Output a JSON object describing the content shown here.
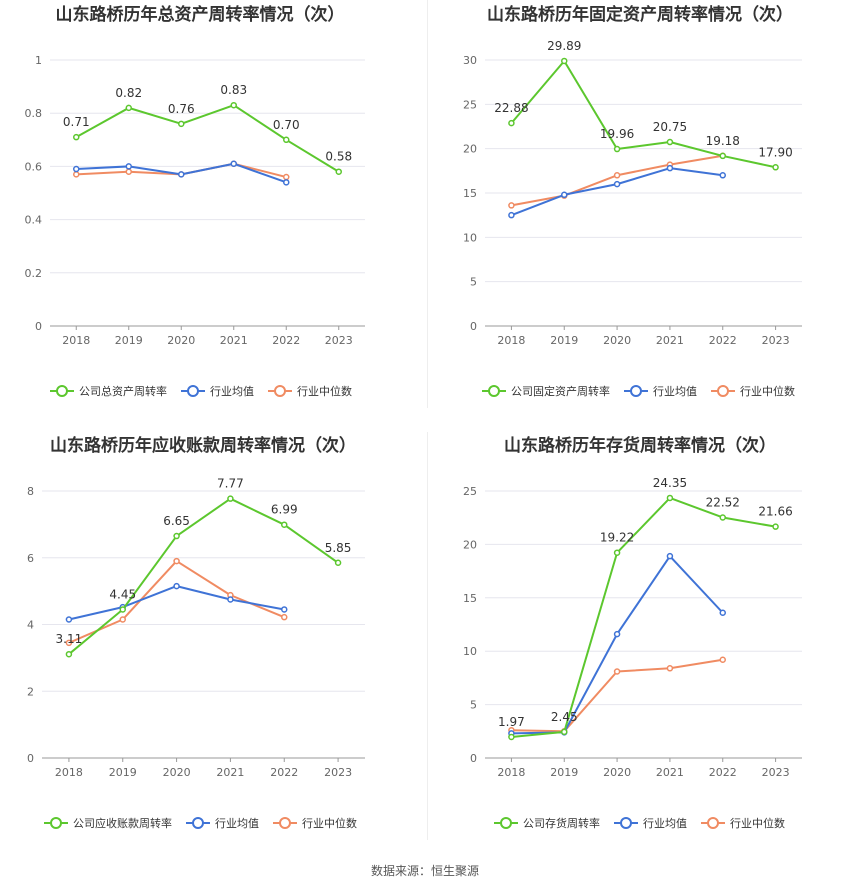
{
  "source_note": "数据来源：恒生聚源",
  "colors": {
    "company": "#5cc72e",
    "avg": "#3f73d6",
    "median": "#f08b62",
    "grid": "#e6e6ee",
    "axis": "#999999",
    "text": "#333333",
    "tick": "#666666"
  },
  "chart_data": [
    {
      "type": "line",
      "title": "山东路桥历年总资产周转率情况（次）",
      "categories": [
        "2018",
        "2019",
        "2020",
        "2021",
        "2022",
        "2023"
      ],
      "ylim": [
        0,
        1
      ],
      "yticks": [
        "0",
        "0.2",
        "0.4",
        "0.6",
        "0.8",
        "1"
      ],
      "ytick_values": [
        0,
        0.2,
        0.4,
        0.6,
        0.8,
        1
      ],
      "legend_position": "bottom",
      "series": [
        {
          "name": "公司总资产周转率",
          "color_key": "company",
          "values": [
            0.71,
            0.82,
            0.76,
            0.83,
            0.7,
            0.58
          ],
          "labels": [
            "0.71",
            "0.82",
            "0.76",
            "0.83",
            "0.70",
            "0.58"
          ]
        },
        {
          "name": "行业均值",
          "color_key": "avg",
          "values": [
            0.59,
            0.6,
            0.57,
            0.61,
            0.54,
            null
          ]
        },
        {
          "name": "行业中位数",
          "color_key": "median",
          "values": [
            0.57,
            0.58,
            0.57,
            0.61,
            0.56,
            null
          ]
        }
      ]
    },
    {
      "type": "line",
      "title": "山东路桥历年固定资产周转率情况（次）",
      "categories": [
        "2018",
        "2019",
        "2020",
        "2021",
        "2022",
        "2023"
      ],
      "ylim": [
        0,
        30
      ],
      "yticks": [
        "0",
        "5",
        "10",
        "15",
        "20",
        "25",
        "30"
      ],
      "ytick_values": [
        0,
        5,
        10,
        15,
        20,
        25,
        30
      ],
      "legend_position": "bottom",
      "series": [
        {
          "name": "公司固定资产周转率",
          "color_key": "company",
          "values": [
            22.88,
            29.89,
            19.96,
            20.75,
            19.18,
            17.9
          ],
          "labels": [
            "22.88",
            "29.89",
            "19.96",
            "20.75",
            "19.18",
            "17.90"
          ]
        },
        {
          "name": "行业均值",
          "color_key": "avg",
          "values": [
            12.5,
            14.8,
            16.0,
            17.8,
            17.0,
            null
          ]
        },
        {
          "name": "行业中位数",
          "color_key": "median",
          "values": [
            13.6,
            14.7,
            17.0,
            18.2,
            19.2,
            null
          ]
        }
      ]
    },
    {
      "type": "line",
      "title": "山东路桥历年应收账款周转率情况（次）",
      "categories": [
        "2018",
        "2019",
        "2020",
        "2021",
        "2022",
        "2023"
      ],
      "ylim": [
        0,
        8
      ],
      "yticks": [
        "0",
        "2",
        "4",
        "6",
        "8"
      ],
      "ytick_values": [
        0,
        2,
        4,
        6,
        8
      ],
      "legend_position": "bottom",
      "series": [
        {
          "name": "公司应收账款周转率",
          "color_key": "company",
          "values": [
            3.11,
            4.45,
            6.65,
            7.77,
            6.99,
            5.85
          ],
          "labels": [
            "3.11",
            "4.45",
            "6.65",
            "7.77",
            "6.99",
            "5.85"
          ]
        },
        {
          "name": "行业均值",
          "color_key": "avg",
          "values": [
            4.15,
            4.52,
            5.15,
            4.75,
            4.45,
            null
          ]
        },
        {
          "name": "行业中位数",
          "color_key": "median",
          "values": [
            3.45,
            4.15,
            5.9,
            4.88,
            4.22,
            null
          ]
        }
      ]
    },
    {
      "type": "line",
      "title": "山东路桥历年存货周转率情况（次）",
      "categories": [
        "2018",
        "2019",
        "2020",
        "2021",
        "2022",
        "2023"
      ],
      "ylim": [
        0,
        25
      ],
      "yticks": [
        "0",
        "5",
        "10",
        "15",
        "20",
        "25"
      ],
      "ytick_values": [
        0,
        5,
        10,
        15,
        20,
        25
      ],
      "legend_position": "bottom",
      "series": [
        {
          "name": "公司存货周转率",
          "color_key": "company",
          "values": [
            1.97,
            2.45,
            19.22,
            24.35,
            22.52,
            21.66
          ],
          "labels": [
            "1.97",
            "2.45",
            "19.22",
            "24.35",
            "22.52",
            "21.66"
          ]
        },
        {
          "name": "行业均值",
          "color_key": "avg",
          "values": [
            2.3,
            2.4,
            11.6,
            18.9,
            13.6,
            null
          ]
        },
        {
          "name": "行业中位数",
          "color_key": "median",
          "values": [
            2.6,
            2.5,
            8.1,
            8.4,
            9.2,
            null
          ]
        }
      ]
    }
  ]
}
